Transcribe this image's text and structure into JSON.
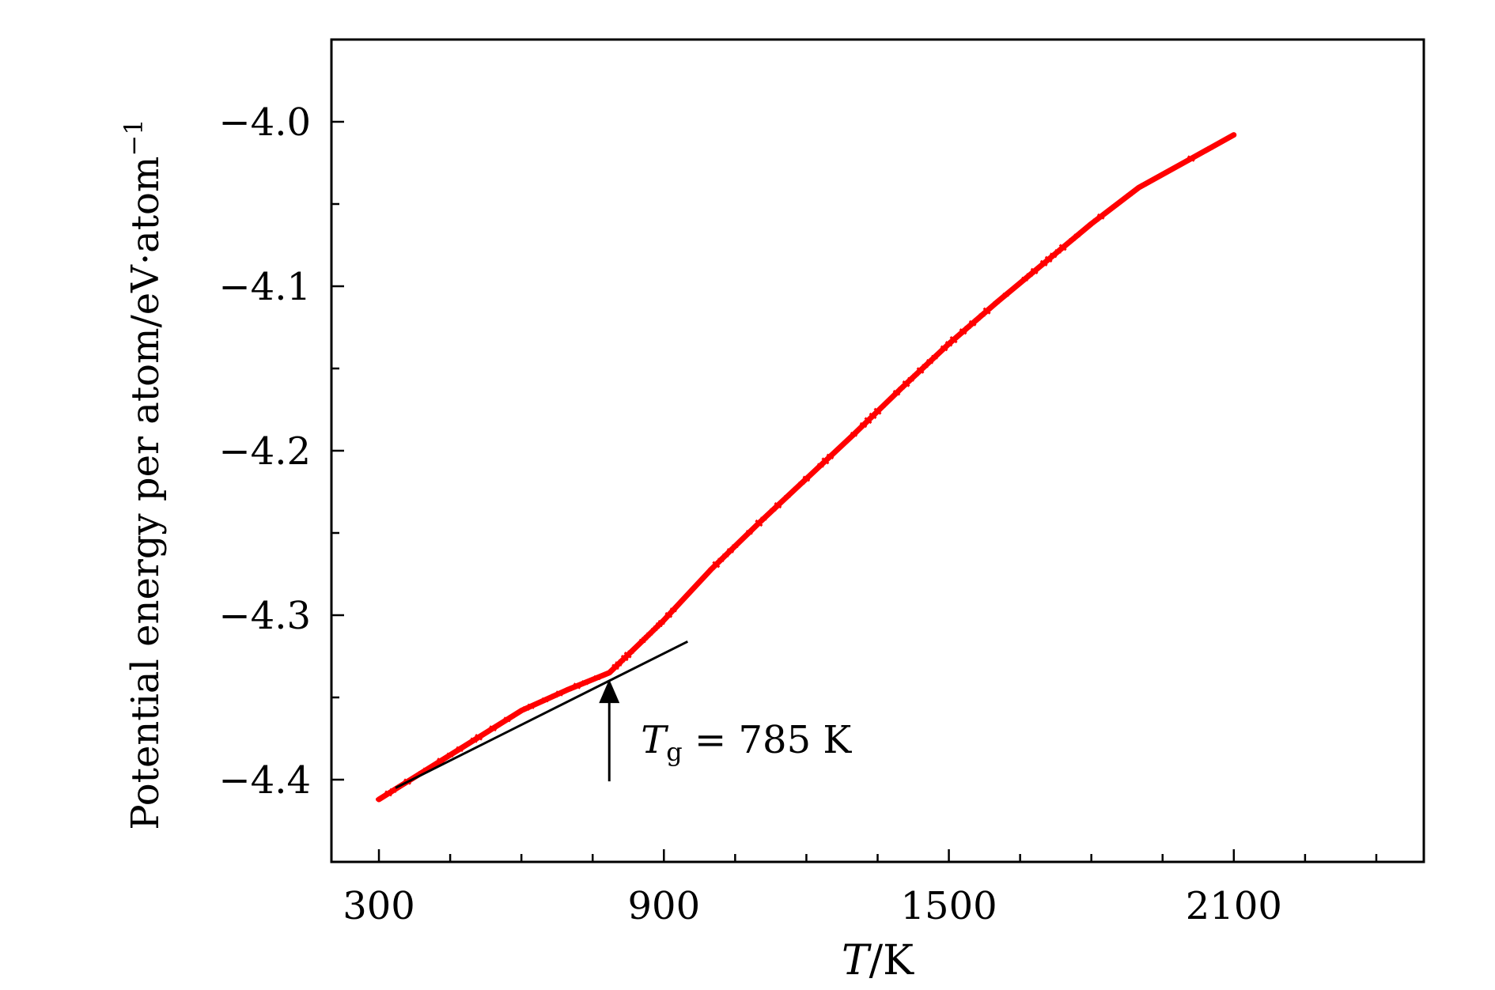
{
  "chart_data": {
    "type": "line",
    "title": "",
    "xlabel_italic": "T",
    "xlabel_rest": "/K",
    "ylabel": "Potential energy per atom/eV·atom",
    "ylabel_sup": "−1",
    "xlim": [
      200,
      2500
    ],
    "ylim": [
      -4.45,
      -3.95
    ],
    "x_ticks": [
      300,
      900,
      1500,
      2100
    ],
    "x_tick_labels": [
      "300",
      "900",
      "1500",
      "2100"
    ],
    "x_minor_step": 150,
    "y_ticks": [
      -4.4,
      -4.3,
      -4.2,
      -4.1,
      -4.0
    ],
    "y_tick_labels": [
      "−4.4",
      "−4.3",
      "−4.2",
      "−4.1",
      "−4.0"
    ],
    "y_minor_step": 0.05,
    "grid": false,
    "series": [
      {
        "color": "#ff0000",
        "x": [
          300,
          400,
          500,
          600,
          700,
          785,
          850,
          900,
          1000,
          1100,
          1200,
          1300,
          1400,
          1500,
          1600,
          1700,
          1800,
          1900,
          2000,
          2100
        ],
        "y": [
          -4.412,
          -4.394,
          -4.376,
          -4.358,
          -4.345,
          -4.335,
          -4.317,
          -4.303,
          -4.272,
          -4.244,
          -4.217,
          -4.19,
          -4.162,
          -4.135,
          -4.11,
          -4.086,
          -4.062,
          -4.04,
          -4.024,
          -4.008
        ]
      }
    ],
    "fit_line": {
      "color": "#000000",
      "x": [
        335,
        950
      ],
      "y": [
        -4.405,
        -4.316
      ]
    },
    "annotation": {
      "symbol": "T",
      "subscript": "g",
      "rest": " = 785 K",
      "x": 785,
      "y_from": -4.401,
      "y_to": -4.339
    }
  }
}
